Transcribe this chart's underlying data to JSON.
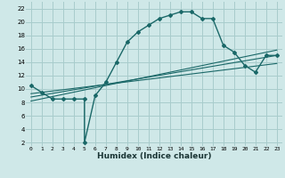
{
  "title": "",
  "xlabel": "Humidex (Indice chaleur)",
  "bg_color": "#cfe8e8",
  "grid_color": "#a8cccc",
  "line_color": "#1a6868",
  "xlim": [
    -0.5,
    23.5
  ],
  "ylim": [
    1.5,
    23.0
  ],
  "xticks": [
    0,
    1,
    2,
    3,
    4,
    5,
    6,
    7,
    8,
    9,
    10,
    11,
    12,
    13,
    14,
    15,
    16,
    17,
    18,
    19,
    20,
    21,
    22,
    23
  ],
  "yticks": [
    2,
    4,
    6,
    8,
    10,
    12,
    14,
    16,
    18,
    20,
    22
  ],
  "main_x": [
    0,
    1,
    2,
    3,
    4,
    5,
    5,
    6,
    7,
    8,
    9,
    10,
    11,
    12,
    13,
    14,
    15,
    16,
    17,
    18,
    19,
    20,
    21,
    22,
    23
  ],
  "main_y": [
    10.5,
    9.5,
    8.5,
    8.5,
    8.5,
    8.5,
    2.0,
    9.0,
    11.0,
    14.0,
    17.0,
    18.5,
    19.5,
    20.5,
    21.0,
    21.5,
    21.5,
    20.5,
    20.5,
    16.5,
    15.5,
    13.5,
    12.5,
    15.0,
    15.0
  ],
  "line1_x": [
    0,
    23
  ],
  "line1_y": [
    8.2,
    15.8
  ],
  "line2_x": [
    0,
    23
  ],
  "line2_y": [
    8.8,
    15.0
  ],
  "line3_x": [
    0,
    23
  ],
  "line3_y": [
    9.3,
    13.8
  ]
}
